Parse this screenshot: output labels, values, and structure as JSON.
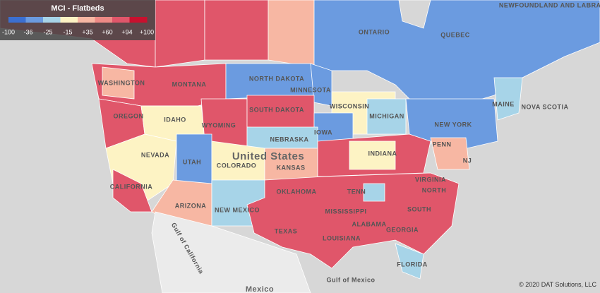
{
  "legend": {
    "title": "MCI - Flatbeds",
    "labels": [
      "-100",
      "-36",
      "-25",
      "-15",
      "+35",
      "+60",
      "+94",
      "+100"
    ],
    "colors": [
      "#3b6fd1",
      "#6b9be0",
      "#a7d4e8",
      "#fdf3c4",
      "#f7b7a3",
      "#ee8a86",
      "#e0566a",
      "#c8102e"
    ]
  },
  "labels": [
    "NEWFOUNDLAND AND LABRADOR",
    "ONTARIO",
    "QUEBEC",
    "MONTANA",
    "WASHINGTON",
    "NORTH DAKOTA",
    "MINNESOTA",
    "OREGON",
    "IDAHO",
    "SOUTH DAKOTA",
    "WISCONSIN",
    "MICHIGAN",
    "WYOMING",
    "IOWA",
    "NEBRASKA",
    "MAINE",
    "NOVA SCOTIA",
    "NEW YORK",
    "United States",
    "NEVADA",
    "UTAH",
    "COLORADO",
    "KANSAS",
    "INDIANA",
    "PENN",
    "NJ",
    "VIRGINIA",
    "NORTH",
    "CALIFORNIA",
    "OKLAHOMA",
    "TENN",
    "ARIZONA",
    "NEW MEXICO",
    "MISSISSIPPI",
    "ALABAMA",
    "SOUTH",
    "GEORGIA",
    "TEXAS",
    "LOUISIANA",
    "FLORIDA",
    "Gulf of California",
    "Gulf of Mexico",
    "Mexico"
  ],
  "copyright": "© 2020 DAT Solutions, LLC"
}
